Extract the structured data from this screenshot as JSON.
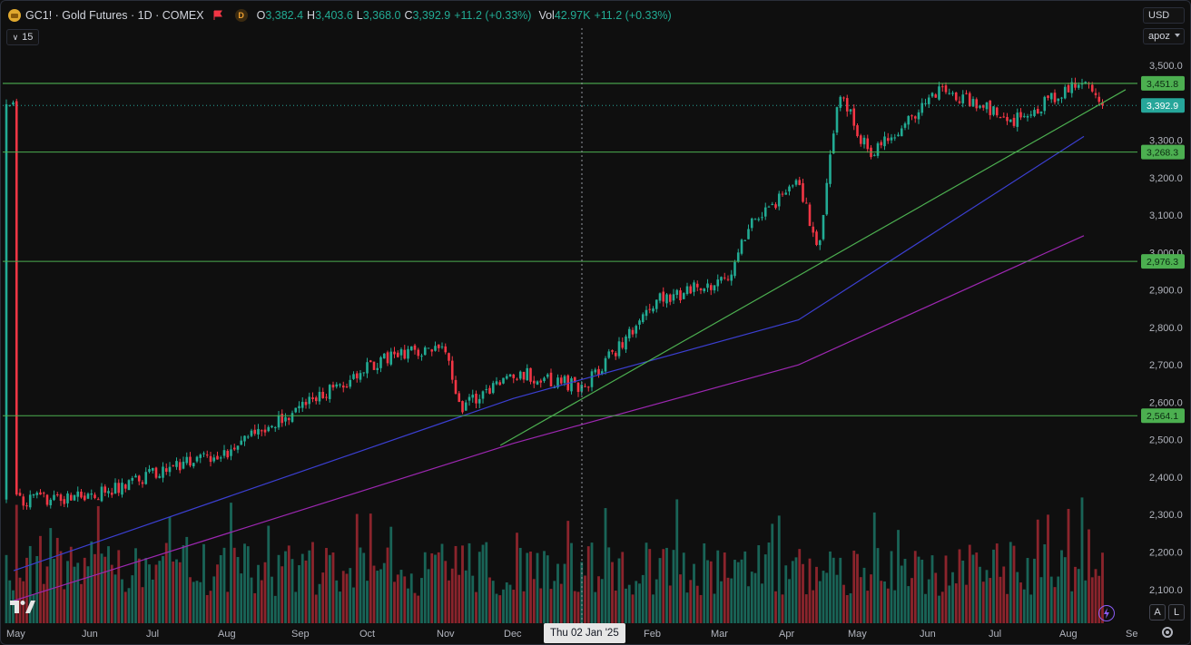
{
  "legend": {
    "title": "GC1! · Gold Futures · 1D · COMEX",
    "d_badge": "D",
    "open_label": "O",
    "open_value": "3,382.4",
    "high_label": "H",
    "high_value": "3,403.6",
    "low_label": "L",
    "low_value": "3,368.0",
    "close_label": "C",
    "close_value": "3,392.9",
    "change": "+11.2 (+0.33%)",
    "vol_label": "Vol",
    "vol_value": "42.97K",
    "vol_change": "+11.2 (+0.33%)"
  },
  "indicator_toggle": "15",
  "currency": "USD",
  "unit_selector": "apoz",
  "crosshair_date": "Thu 02 Jan '25",
  "buttons": {
    "auto": "A",
    "log": "L"
  },
  "colors": {
    "up": "#22ab94",
    "down": "#f23645",
    "hline": "#4caf50",
    "trend": "#4caf50",
    "ma_fast": "#3b3fd1",
    "ma_slow": "#9c27b0",
    "label_green": "#4caf50",
    "price_tag": "#26a69a"
  },
  "chart_data": {
    "type": "candlestick",
    "symbol": "GC1!",
    "y_axis_ticks": [
      "3,500.0",
      "3,400.0",
      "3,300.0",
      "3,200.0",
      "3,100.0",
      "3,000.0",
      "2,900.0",
      "2,800.0",
      "2,700.0",
      "2,600.0",
      "2,500.0",
      "2,400.0",
      "2,300.0",
      "2,200.0",
      "2,100.0"
    ],
    "y_range": [
      2060,
      3560
    ],
    "x_axis_labels": [
      "May",
      "Jun",
      "Jul",
      "Aug",
      "Sep",
      "Oct",
      "Nov",
      "Dec",
      "Feb",
      "Mar",
      "Apr",
      "May",
      "Jun",
      "Jul",
      "Aug",
      "Se"
    ],
    "horizontal_levels": [
      {
        "value": 3451.8,
        "label": "3,451.8"
      },
      {
        "value": 3268.3,
        "label": "3,268.3"
      },
      {
        "value": 2976.3,
        "label": "2,976.3"
      },
      {
        "value": 2564.1,
        "label": "2,564.1"
      }
    ],
    "last_price": {
      "value": 3392.9,
      "label": "3,392.9"
    },
    "trendline": {
      "from": [
        "Dec 2024",
        2485
      ],
      "to": [
        "Aug 2025",
        3435
      ]
    },
    "close_path": [
      [
        "May 2024",
        2340
      ],
      [
        "Jun 2024",
        2345
      ],
      [
        "Jul 2024",
        2410
      ],
      [
        "Aug 2024",
        2470
      ],
      [
        "Sep 2024",
        2580
      ],
      [
        "Oct 2024",
        2700
      ],
      [
        "Nov 2024",
        2760
      ],
      [
        "Nov 2024",
        2590
      ],
      [
        "Dec 2024",
        2680
      ],
      [
        "Jan 2025",
        2640
      ],
      [
        "Feb 2025",
        2870
      ],
      [
        "Mar 2025",
        2930
      ],
      [
        "Mar 2025",
        3060
      ],
      [
        "Apr 2025",
        3200
      ],
      [
        "Apr 2025",
        2990
      ],
      [
        "Apr 2025",
        3430
      ],
      [
        "May 2025",
        3260
      ],
      [
        "Jun 2025",
        3440
      ],
      [
        "Jul 2025",
        3350
      ],
      [
        "Aug 2025",
        3460
      ],
      [
        "Aug 2025",
        3392.9
      ]
    ],
    "ma_fast_path": [
      [
        "May 2024",
        2150
      ],
      [
        "Dec 2024",
        2610
      ],
      [
        "Apr 2025",
        2820
      ],
      [
        "Aug 2025",
        3310
      ]
    ],
    "ma_slow_path": [
      [
        "May 2024",
        2070
      ],
      [
        "Dec 2024",
        2490
      ],
      [
        "Apr 2025",
        2700
      ],
      [
        "Aug 2025",
        3045
      ]
    ],
    "volume": {
      "relative_range": [
        0.3,
        1.0
      ]
    }
  }
}
